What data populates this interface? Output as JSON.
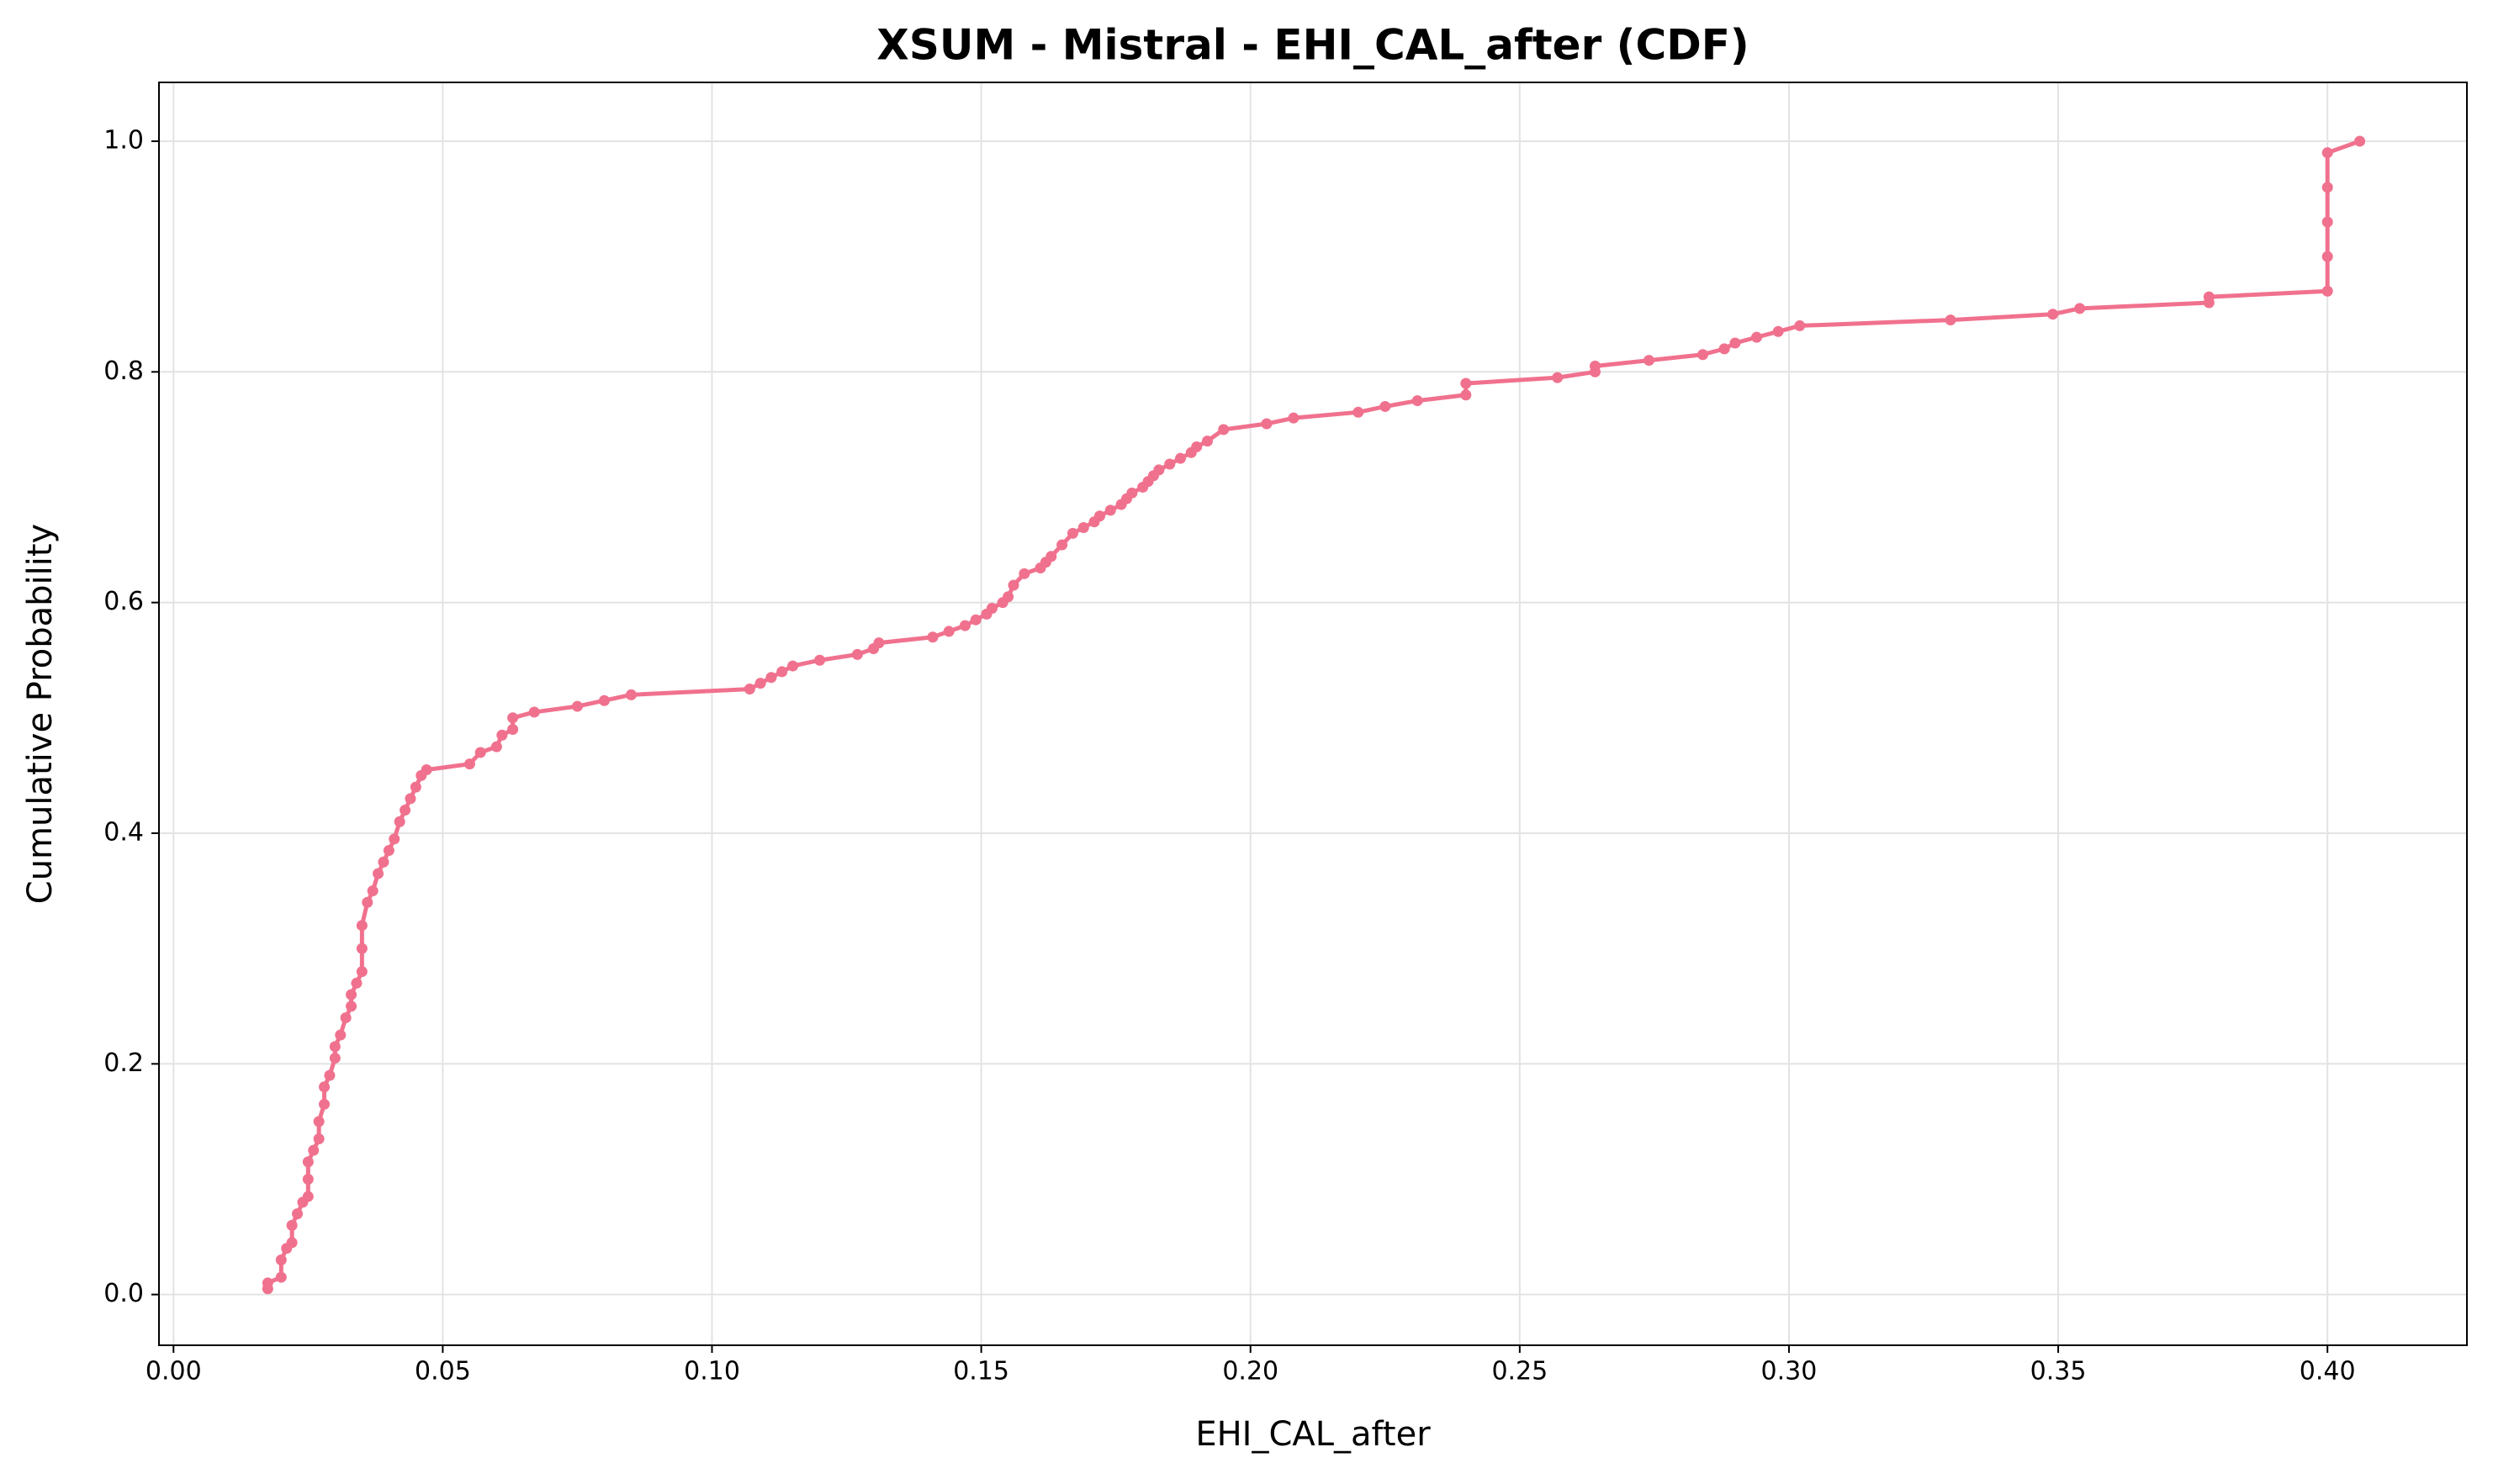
{
  "chart_data": {
    "type": "line",
    "title": "XSUM - Mistral - EHI_CAL_after (CDF)",
    "x_label": "EHI_CAL_after",
    "y_label": "Cumulative Probability",
    "x": [
      0.0175,
      0.0175,
      0.02,
      0.02,
      0.021,
      0.022,
      0.022,
      0.023,
      0.024,
      0.025,
      0.025,
      0.025,
      0.026,
      0.027,
      0.027,
      0.028,
      0.028,
      0.029,
      0.03,
      0.03,
      0.031,
      0.032,
      0.033,
      0.033,
      0.034,
      0.035,
      0.035,
      0.035,
      0.036,
      0.037,
      0.038,
      0.039,
      0.04,
      0.041,
      0.042,
      0.043,
      0.044,
      0.045,
      0.046,
      0.047,
      0.055,
      0.057,
      0.06,
      0.061,
      0.063,
      0.063,
      0.067,
      0.075,
      0.08,
      0.085,
      0.107,
      0.109,
      0.111,
      0.113,
      0.115,
      0.12,
      0.127,
      0.13,
      0.131,
      0.141,
      0.144,
      0.147,
      0.149,
      0.151,
      0.152,
      0.154,
      0.155,
      0.156,
      0.158,
      0.161,
      0.162,
      0.163,
      0.165,
      0.167,
      0.169,
      0.171,
      0.172,
      0.174,
      0.176,
      0.177,
      0.178,
      0.18,
      0.181,
      0.182,
      0.183,
      0.185,
      0.187,
      0.189,
      0.19,
      0.192,
      0.195,
      0.203,
      0.208,
      0.22,
      0.225,
      0.231,
      0.24,
      0.24,
      0.257,
      0.264,
      0.264,
      0.274,
      0.284,
      0.288,
      0.29,
      0.294,
      0.298,
      0.302,
      0.33,
      0.349,
      0.354,
      0.378,
      0.378,
      0.4,
      0.4,
      0.4,
      0.4,
      0.4,
      0.406
    ],
    "series": [
      {
        "name": "EHI_CAL_after",
        "color": "#f0718e",
        "values": [
          0.005,
          0.01,
          0.015,
          0.03,
          0.04,
          0.045,
          0.06,
          0.07,
          0.08,
          0.085,
          0.1,
          0.115,
          0.125,
          0.135,
          0.15,
          0.165,
          0.18,
          0.19,
          0.205,
          0.215,
          0.225,
          0.24,
          0.25,
          0.26,
          0.27,
          0.28,
          0.3,
          0.32,
          0.34,
          0.35,
          0.365,
          0.375,
          0.385,
          0.395,
          0.41,
          0.42,
          0.43,
          0.44,
          0.45,
          0.455,
          0.46,
          0.47,
          0.475,
          0.485,
          0.49,
          0.5,
          0.505,
          0.51,
          0.515,
          0.52,
          0.525,
          0.53,
          0.535,
          0.54,
          0.545,
          0.55,
          0.555,
          0.56,
          0.565,
          0.57,
          0.575,
          0.58,
          0.585,
          0.59,
          0.595,
          0.6,
          0.605,
          0.615,
          0.625,
          0.63,
          0.635,
          0.64,
          0.65,
          0.66,
          0.665,
          0.67,
          0.675,
          0.68,
          0.685,
          0.69,
          0.695,
          0.7,
          0.705,
          0.71,
          0.715,
          0.72,
          0.725,
          0.73,
          0.735,
          0.74,
          0.75,
          0.755,
          0.76,
          0.765,
          0.77,
          0.775,
          0.78,
          0.79,
          0.795,
          0.8,
          0.805,
          0.81,
          0.815,
          0.82,
          0.825,
          0.83,
          0.835,
          0.84,
          0.845,
          0.85,
          0.855,
          0.86,
          0.865,
          0.87,
          0.9,
          0.93,
          0.96,
          0.99,
          1.0
        ]
      }
    ],
    "xlim": [
      -0.0027,
      0.4259
    ],
    "ylim": [
      -0.044,
      1.051
    ],
    "xticks": [
      {
        "value": 0,
        "label": "0.00"
      },
      {
        "value": 0.05,
        "label": "0.05"
      },
      {
        "value": 0.1,
        "label": "0.10"
      },
      {
        "value": 0.15,
        "label": "0.15"
      },
      {
        "value": 0.2,
        "label": "0.20"
      },
      {
        "value": 0.25,
        "label": "0.25"
      },
      {
        "value": 0.3,
        "label": "0.30"
      },
      {
        "value": 0.35,
        "label": "0.35"
      },
      {
        "value": 0.4,
        "label": "0.40"
      }
    ],
    "yticks": [
      {
        "value": 0,
        "label": "0.0"
      },
      {
        "value": 0.2,
        "label": "0.2"
      },
      {
        "value": 0.4,
        "label": "0.4"
      },
      {
        "value": 0.6,
        "label": "0.6"
      },
      {
        "value": 0.8,
        "label": "0.8"
      },
      {
        "value": 1,
        "label": "1.0"
      }
    ],
    "grid": true
  }
}
